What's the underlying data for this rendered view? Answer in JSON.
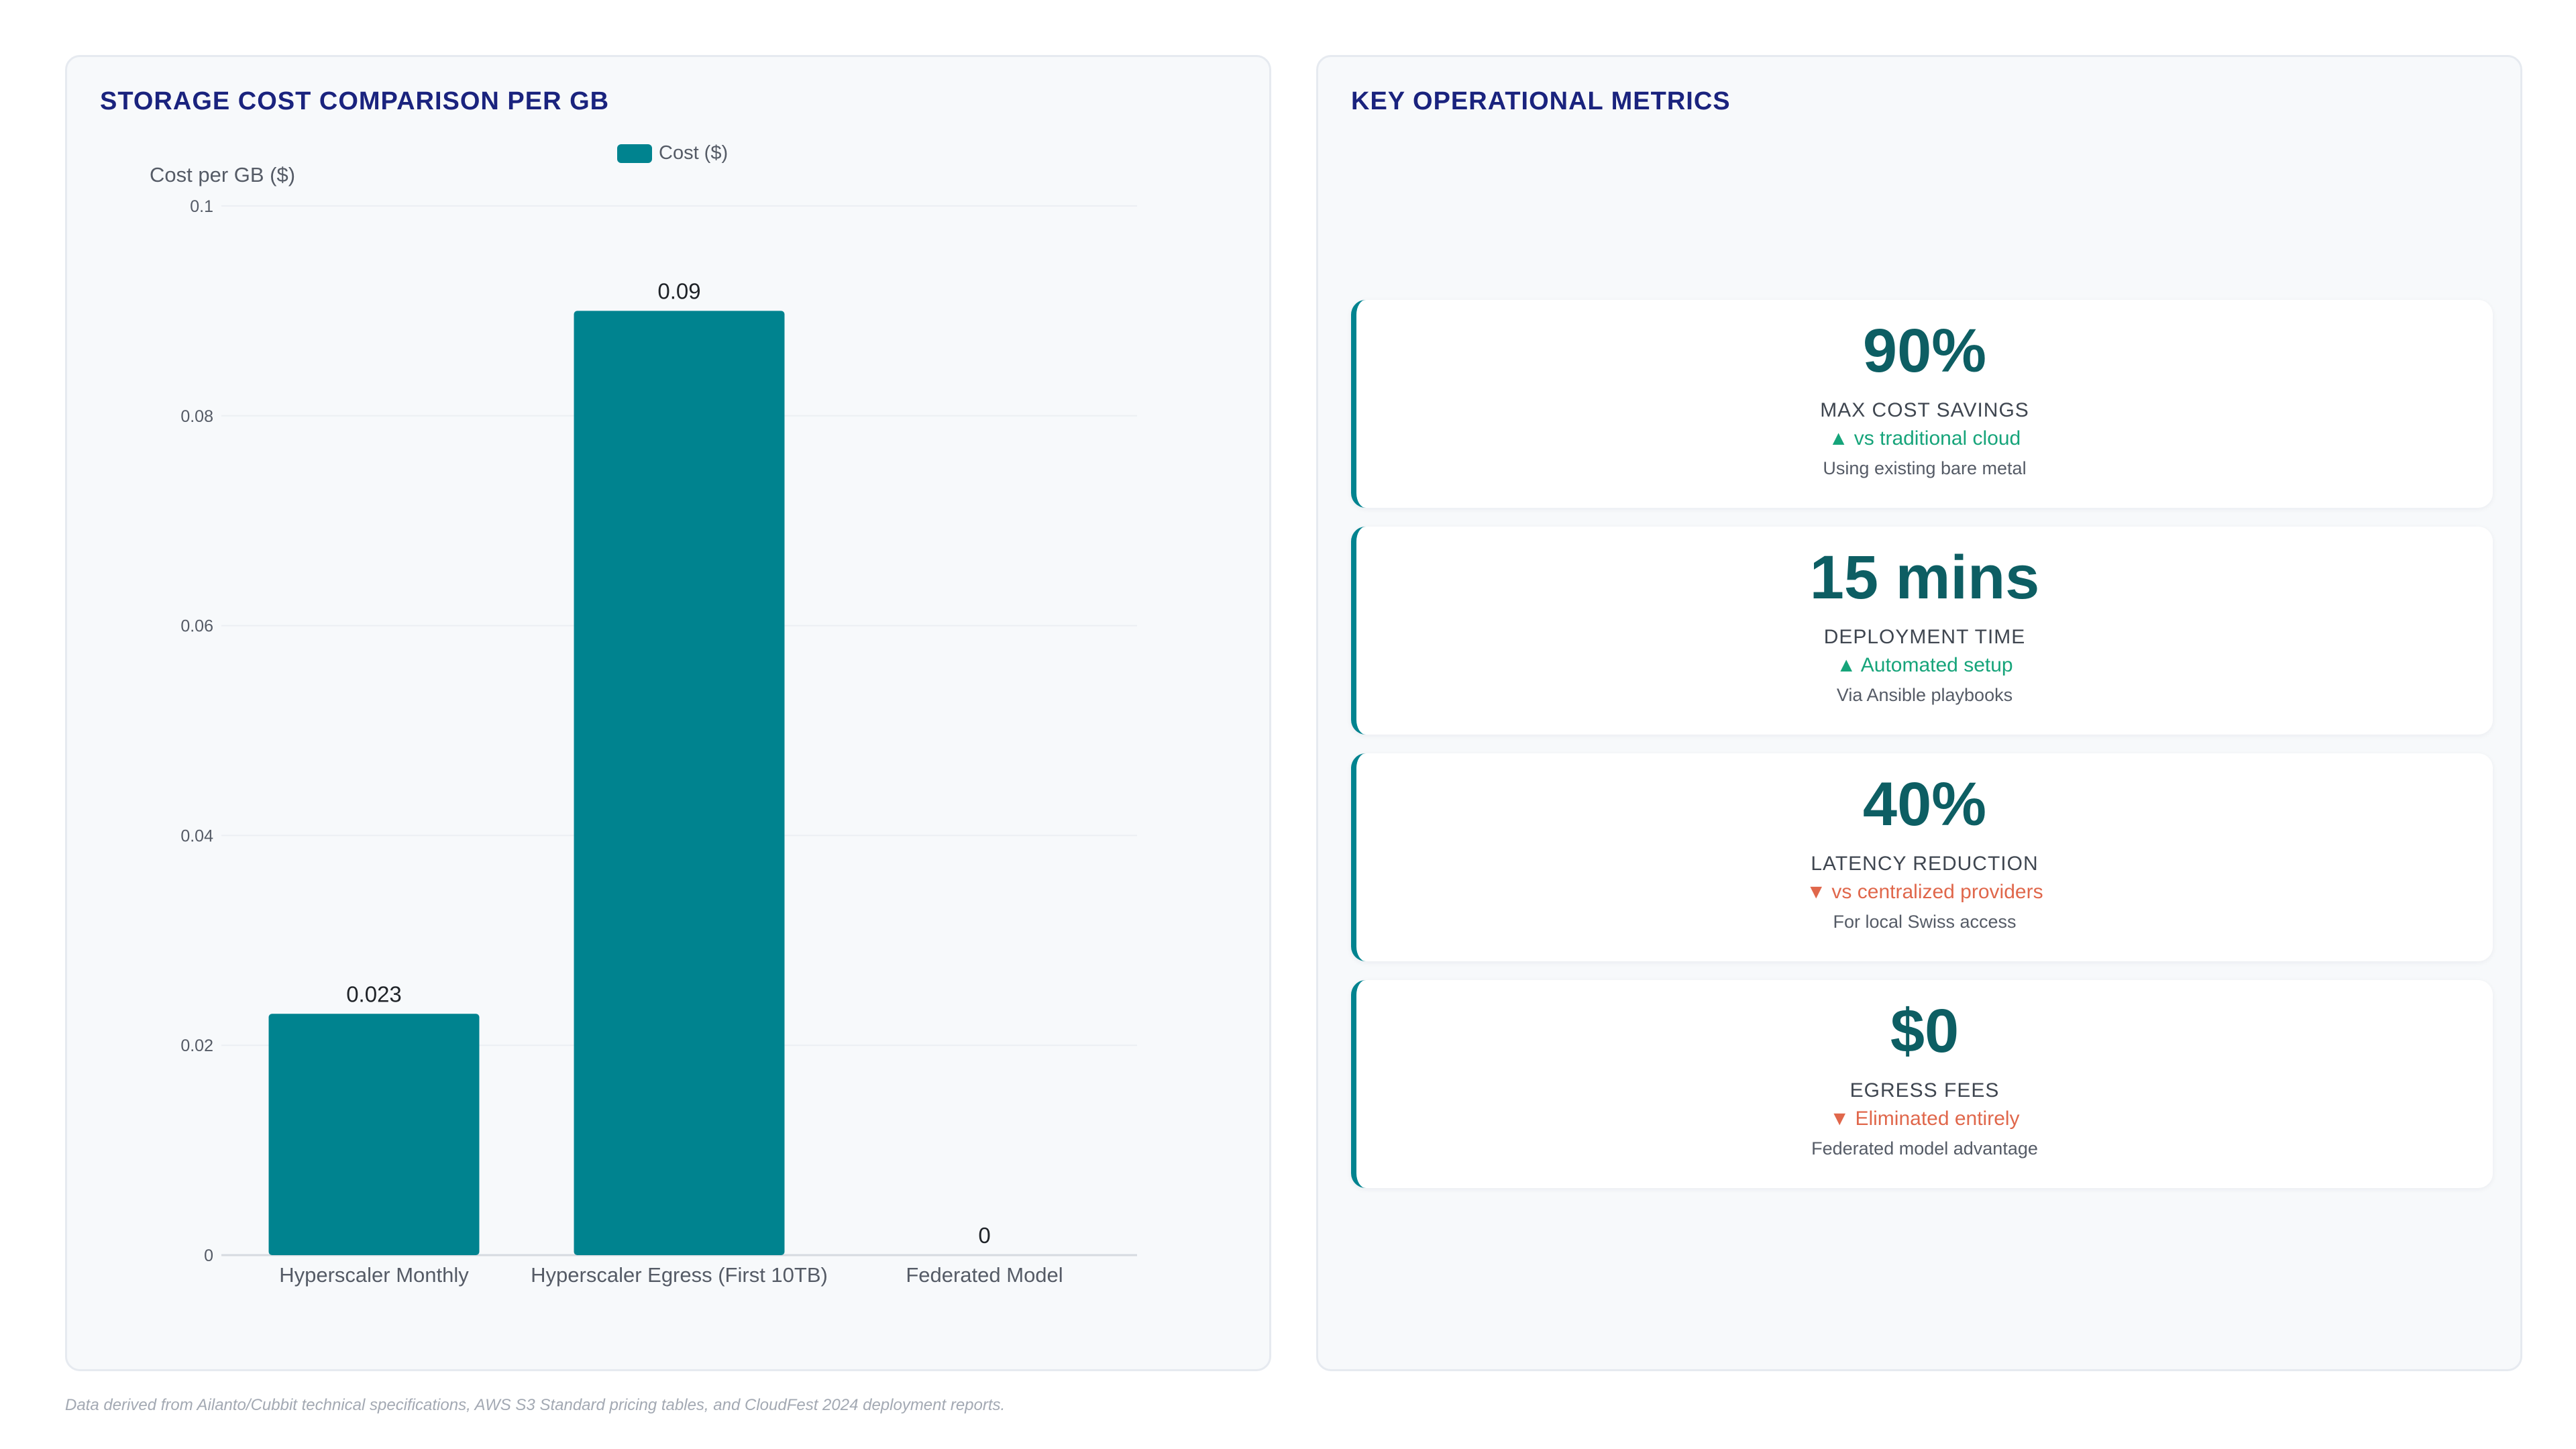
{
  "chart_panel": {
    "title": "STORAGE COST COMPARISON PER GB"
  },
  "chart_data": {
    "type": "bar",
    "categories": [
      "Hyperscaler Monthly",
      "Hyperscaler Egress (First 10TB)",
      "Federated Model"
    ],
    "series": [
      {
        "name": "Cost ($)",
        "values": [
          0.023,
          0.09,
          0
        ],
        "color": "#00838f"
      }
    ],
    "data_labels": [
      "0.023",
      "0.09",
      "0"
    ],
    "ylabel": "Cost per GB ($)",
    "xlabel": "",
    "ylim": [
      0,
      0.1
    ],
    "yticks": [
      0,
      0.02,
      0.04,
      0.06,
      0.08,
      0.1
    ],
    "ytick_labels": [
      "0",
      "0.02",
      "0.04",
      "0.06",
      "0.08",
      "0.1"
    ],
    "grid": true,
    "legend_position": "top"
  },
  "metrics_panel": {
    "title": "KEY OPERATIONAL METRICS",
    "cards": [
      {
        "value": "90%",
        "label": "MAX COST SAVINGS",
        "trend": "▲ vs traditional cloud",
        "trend_direction": "up",
        "note": "Using existing bare metal"
      },
      {
        "value": "15 mins",
        "label": "DEPLOYMENT TIME",
        "trend": "▲ Automated setup",
        "trend_direction": "up",
        "note": "Via Ansible playbooks"
      },
      {
        "value": "40%",
        "label": "LATENCY REDUCTION",
        "trend": "▼ vs centralized providers",
        "trend_direction": "down",
        "note": "For local Swiss access"
      },
      {
        "value": "$0",
        "label": "EGRESS FEES",
        "trend": "▼ Eliminated entirely",
        "trend_direction": "down",
        "note": "Federated model advantage"
      }
    ]
  },
  "colors": {
    "accent": "#00838f",
    "value_text": "#0d5e63",
    "title_text": "#1a237e",
    "trend_up": "#16a47a",
    "trend_down": "#e0674b"
  },
  "footnote": "Data derived from Ailanto/Cubbit technical specifications, AWS S3 Standard pricing tables, and CloudFest 2024 deployment reports."
}
